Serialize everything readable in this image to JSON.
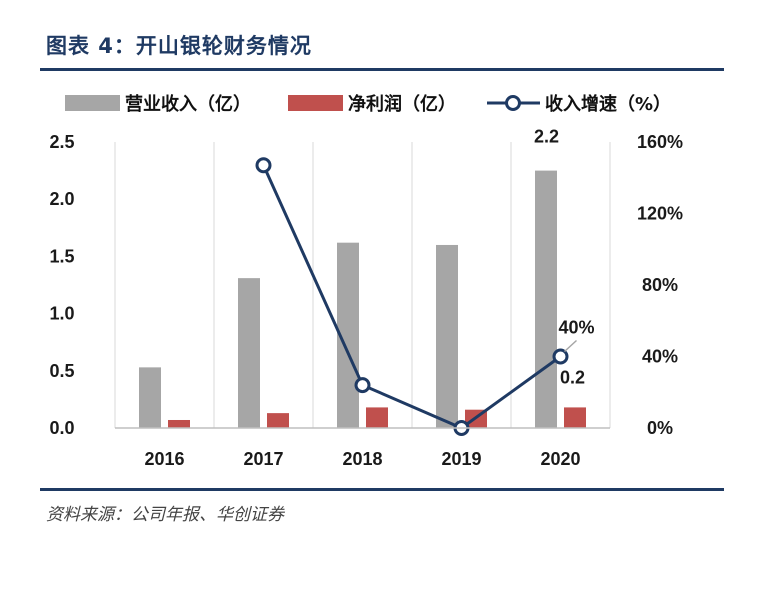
{
  "figure": {
    "title": "图表 4：开山银轮财务情况",
    "source": "资料来源：公司年报、华创证券"
  },
  "colors": {
    "revenue": "#a6a6a6",
    "profit": "#c0504d",
    "growth": "#1f3a63",
    "grid": "#d9d9d9"
  },
  "chart_data": {
    "type": "bar",
    "categories": [
      "2016",
      "2017",
      "2018",
      "2019",
      "2020"
    ],
    "series": [
      {
        "name": "营业收入（亿）",
        "kind": "bar",
        "axis": "left",
        "values": [
          0.53,
          1.31,
          1.62,
          1.6,
          2.25
        ]
      },
      {
        "name": "净利润（亿）",
        "kind": "bar",
        "axis": "left",
        "values": [
          0.07,
          0.13,
          0.18,
          0.16,
          0.18
        ]
      },
      {
        "name": "收入增速（%）",
        "kind": "line",
        "axis": "right",
        "values": [
          null,
          147,
          24,
          0,
          40
        ]
      }
    ],
    "y_left": {
      "ylim": [
        0,
        2.5
      ],
      "ticks": [
        "0.0",
        "0.5",
        "1.0",
        "1.5",
        "2.0",
        "2.5"
      ]
    },
    "y_right": {
      "ylim": [
        0,
        160
      ],
      "ticks": [
        "0%",
        "40%",
        "80%",
        "120%",
        "160%"
      ]
    },
    "data_labels": [
      {
        "series": 0,
        "index": 4,
        "text": "2.2"
      },
      {
        "series": 1,
        "index": 4,
        "text": "0.2"
      },
      {
        "series": 2,
        "index": 4,
        "text": "40%"
      }
    ],
    "grid": "vertical",
    "legend_position": "top"
  }
}
